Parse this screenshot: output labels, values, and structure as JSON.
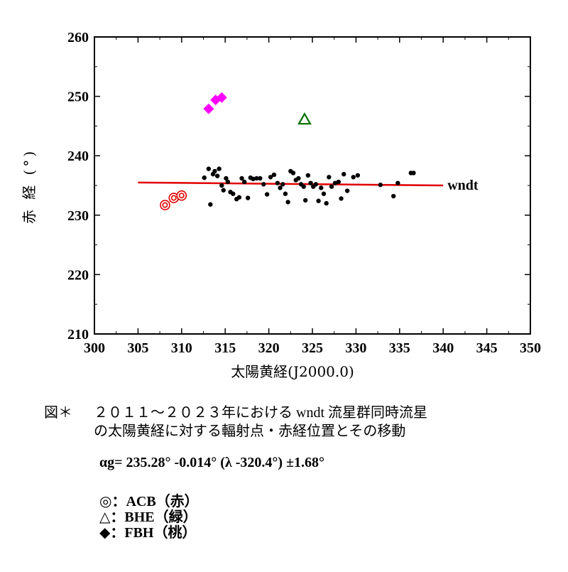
{
  "chart_data": {
    "type": "scatter",
    "xlabel": "太陽黄経(J2000.0)",
    "ylabel": "赤 経 (°)",
    "xlim": [
      300,
      350
    ],
    "ylim": [
      210,
      260
    ],
    "xticks": [
      "300",
      "305",
      "310",
      "315",
      "320",
      "325",
      "330",
      "335",
      "340",
      "345",
      "350"
    ],
    "yticks": [
      "210",
      "220",
      "230",
      "240",
      "250",
      "260"
    ],
    "grid": false,
    "series": [
      {
        "name": "wndt",
        "marker": "dot",
        "color": "#000000",
        "points": [
          [
            312.6,
            236.3
          ],
          [
            313.1,
            237.8
          ],
          [
            313.3,
            231.8
          ],
          [
            313.6,
            236.9
          ],
          [
            313.8,
            237.4
          ],
          [
            314.1,
            236.6
          ],
          [
            314.3,
            237.8
          ],
          [
            314.6,
            235.0
          ],
          [
            314.8,
            234.2
          ],
          [
            315.1,
            236.2
          ],
          [
            315.3,
            235.6
          ],
          [
            315.6,
            233.9
          ],
          [
            315.9,
            233.6
          ],
          [
            316.3,
            232.7
          ],
          [
            316.6,
            233.0
          ],
          [
            316.9,
            236.2
          ],
          [
            317.2,
            235.6
          ],
          [
            317.6,
            232.9
          ],
          [
            317.9,
            236.3
          ],
          [
            318.2,
            236.1
          ],
          [
            318.6,
            236.2
          ],
          [
            319.0,
            236.2
          ],
          [
            319.4,
            235.2
          ],
          [
            319.8,
            233.5
          ],
          [
            320.2,
            236.4
          ],
          [
            320.6,
            236.8
          ],
          [
            321.0,
            235.4
          ],
          [
            321.3,
            234.6
          ],
          [
            321.6,
            235.2
          ],
          [
            321.9,
            233.6
          ],
          [
            322.2,
            232.2
          ],
          [
            322.5,
            237.4
          ],
          [
            322.8,
            237.1
          ],
          [
            323.1,
            235.9
          ],
          [
            323.4,
            236.2
          ],
          [
            323.7,
            235.2
          ],
          [
            324.0,
            234.8
          ],
          [
            324.2,
            232.5
          ],
          [
            324.5,
            236.7
          ],
          [
            324.8,
            235.4
          ],
          [
            325.1,
            234.8
          ],
          [
            325.4,
            235.2
          ],
          [
            325.7,
            232.4
          ],
          [
            326.0,
            234.6
          ],
          [
            326.3,
            233.6
          ],
          [
            326.6,
            232.0
          ],
          [
            326.9,
            236.4
          ],
          [
            327.2,
            234.8
          ],
          [
            327.6,
            235.4
          ],
          [
            328.0,
            235.6
          ],
          [
            328.3,
            232.8
          ],
          [
            328.6,
            236.9
          ],
          [
            329.0,
            234.1
          ],
          [
            329.7,
            236.4
          ],
          [
            330.2,
            236.7
          ],
          [
            332.8,
            235.1
          ],
          [
            334.3,
            233.2
          ],
          [
            334.8,
            235.4
          ],
          [
            336.3,
            237.1
          ],
          [
            336.6,
            237.1
          ]
        ]
      },
      {
        "name": "ACB",
        "marker": "double-circle",
        "color": "#e00000",
        "points": [
          [
            308.1,
            231.7
          ],
          [
            309.1,
            232.9
          ],
          [
            310.0,
            233.3
          ]
        ]
      },
      {
        "name": "BHE",
        "marker": "triangle",
        "color": "#007000",
        "points": [
          [
            324.1,
            246.1
          ]
        ]
      },
      {
        "name": "FBH",
        "marker": "diamond",
        "color": "#ff00ff",
        "points": [
          [
            313.1,
            247.9
          ],
          [
            313.9,
            249.4
          ],
          [
            314.6,
            249.8
          ]
        ]
      }
    ],
    "fit_line": {
      "label": "wndt",
      "color": "#e00000",
      "intercept": 235.28,
      "slope": -0.014,
      "x0": 320.4,
      "x_range": [
        305,
        340
      ]
    }
  },
  "caption": {
    "number": "図＊",
    "line1": "２０１１～２０２３年における wndt 流星群同時流星",
    "line2": "の太陽黄経に対する輻射点・赤経位置とその移動"
  },
  "formula": "αg= 235.28°  -0.014° (λ -320.4°) ±1.68°",
  "legend": {
    "acb": "◎：ACB（赤）",
    "bhe": "△：BHE（緑）",
    "fbh": "◆：FBH（桃）"
  }
}
